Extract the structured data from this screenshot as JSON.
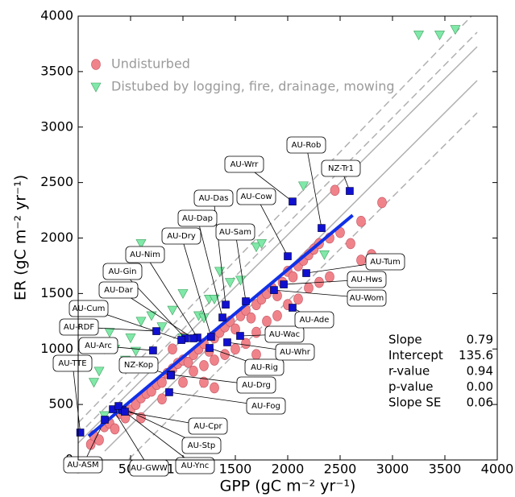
{
  "chart_data": {
    "type": "scatter",
    "xlabel": "GPP  (gC m⁻² yr⁻¹)",
    "ylabel": "ER  (gC m⁻² yr⁻¹)",
    "xlim": [
      0,
      4000
    ],
    "ylim": [
      0,
      4000
    ],
    "xticks": [
      0,
      500,
      1000,
      1500,
      2000,
      2500,
      3000,
      3500,
      4000
    ],
    "yticks": [
      0,
      500,
      1000,
      1500,
      2000,
      2500,
      3000,
      3500,
      4000
    ],
    "series": [
      {
        "name": "Undisturbed",
        "color": "#f0838a",
        "marker": "circle",
        "x": [
          120,
          150,
          200,
          250,
          300,
          350,
          400,
          450,
          500,
          550,
          600,
          650,
          700,
          750,
          800,
          850,
          900,
          950,
          1000,
          1050,
          1100,
          1150,
          1200,
          1250,
          1300,
          1350,
          1400,
          1450,
          1500,
          1550,
          1600,
          1650,
          1700,
          1750,
          1800,
          1850,
          1900,
          1950,
          2000,
          2050,
          2100,
          2150,
          2200,
          2250,
          2300,
          2400,
          2500,
          2600,
          2700,
          2900,
          2450,
          1000,
          1100,
          1200,
          1300,
          1400,
          1500,
          1600,
          1700,
          1800,
          1900,
          2000,
          2100,
          2200,
          2300,
          900,
          1000,
          700,
          1300,
          1200,
          600,
          800,
          1700,
          2400,
          2700,
          2800
        ],
        "y": [
          140,
          220,
          180,
          300,
          330,
          280,
          420,
          380,
          450,
          500,
          560,
          600,
          620,
          680,
          700,
          780,
          820,
          870,
          900,
          880,
          950,
          1000,
          1050,
          980,
          1100,
          1150,
          1200,
          1250,
          1180,
          1300,
          1350,
          1280,
          1400,
          1450,
          1500,
          1550,
          1480,
          1600,
          1700,
          1650,
          1750,
          1800,
          1850,
          1900,
          1950,
          2000,
          2050,
          1950,
          2150,
          2320,
          2430,
          700,
          800,
          850,
          900,
          950,
          1000,
          1050,
          1150,
          1250,
          1300,
          1400,
          1450,
          1550,
          1600,
          1000,
          1100,
          850,
          650,
          700,
          380,
          550,
          950,
          1650,
          1800,
          1850
        ]
      },
      {
        "name": "Distubed by logging, fire, drainage, mowing",
        "color": "#80e8a8",
        "marker": "triangle",
        "x": [
          3250,
          3450,
          3600,
          2150,
          1700,
          1750,
          1550,
          1250,
          1300,
          1150,
          1200,
          600,
          250,
          300,
          350,
          500,
          600,
          700,
          800,
          900,
          1000,
          150,
          200,
          250,
          400,
          450,
          550,
          1000,
          1350,
          1450,
          2350
        ],
        "y": [
          3830,
          3830,
          3880,
          2470,
          1920,
          1950,
          1620,
          1450,
          1450,
          1300,
          1280,
          1950,
          1000,
          1150,
          1000,
          1100,
          1250,
          1300,
          1200,
          1350,
          1100,
          700,
          800,
          400,
          450,
          900,
          980,
          1500,
          1700,
          1600,
          1850
        ]
      }
    ],
    "sites": [
      {
        "label": "AU-TTE",
        "gpp": 20,
        "er": 247
      },
      {
        "label": "AU-ASM",
        "gpp": 254,
        "er": 363
      },
      {
        "label": "AU-GWW",
        "gpp": 331,
        "er": 457
      },
      {
        "label": "AU-Ync",
        "gpp": 423,
        "er": 450
      },
      {
        "label": "AU-Stp",
        "gpp": 385,
        "er": 486
      },
      {
        "label": "AU-Cpr",
        "gpp": 446,
        "er": 435
      },
      {
        "label": "AU-Fog",
        "gpp": 869,
        "er": 610
      },
      {
        "label": "AU-Drg",
        "gpp": 885,
        "er": 769
      },
      {
        "label": "AU-Rig",
        "gpp": 1254,
        "er": 1009
      },
      {
        "label": "AU-Whr",
        "gpp": 1423,
        "er": 1060
      },
      {
        "label": "AU-Wac",
        "gpp": 1546,
        "er": 1118
      },
      {
        "label": "AU-Ade",
        "gpp": 2046,
        "er": 1372
      },
      {
        "label": "AU-Wom",
        "gpp": 1869,
        "er": 1531
      },
      {
        "label": "AU-Hws",
        "gpp": 1962,
        "er": 1582
      },
      {
        "label": "AU-Tum",
        "gpp": 2177,
        "er": 1684
      },
      {
        "label": "NZ-Tr1",
        "gpp": 2592,
        "er": 2424
      },
      {
        "label": "AU-Rob",
        "gpp": 2323,
        "er": 2090
      },
      {
        "label": "AU-Wrr",
        "gpp": 2046,
        "er": 2329
      },
      {
        "label": "AU-Cow",
        "gpp": 2000,
        "er": 1836
      },
      {
        "label": "AU-Das",
        "gpp": 1408,
        "er": 1400
      },
      {
        "label": "AU-Dap",
        "gpp": 1377,
        "er": 1284
      },
      {
        "label": "AU-Sam",
        "gpp": 1600,
        "er": 1430
      },
      {
        "label": "AU-Dry",
        "gpp": 1269,
        "er": 1110
      },
      {
        "label": "AU-Nim",
        "gpp": 1138,
        "er": 1103
      },
      {
        "label": "AU-Gin",
        "gpp": 1023,
        "er": 1096
      },
      {
        "label": "AU-Dar",
        "gpp": 1100,
        "er": 1096
      },
      {
        "label": "AU-Cum",
        "gpp": 985,
        "er": 1081
      },
      {
        "label": "AU-RDF",
        "gpp": 746,
        "er": 1161
      },
      {
        "label": "AU-Arc",
        "gpp": 715,
        "er": 987
      },
      {
        "label": "NZ-Kop",
        "gpp": 885,
        "er": 762
      }
    ],
    "site_color": "#1010d0",
    "fit_color": "#1030e8",
    "fit_x": [
      100,
      2620
    ],
    "stats": [
      {
        "label": "Slope",
        "value": 0.79
      },
      {
        "label": "Intercept",
        "value": 135.6
      },
      {
        "label": "r-value",
        "value": 0.94
      },
      {
        "label": "p-value",
        "value": {
          "value": 0,
          "label": "0.00"
        }
      },
      {
        "label": "Slope SE",
        "value": 0.06
      }
    ]
  }
}
